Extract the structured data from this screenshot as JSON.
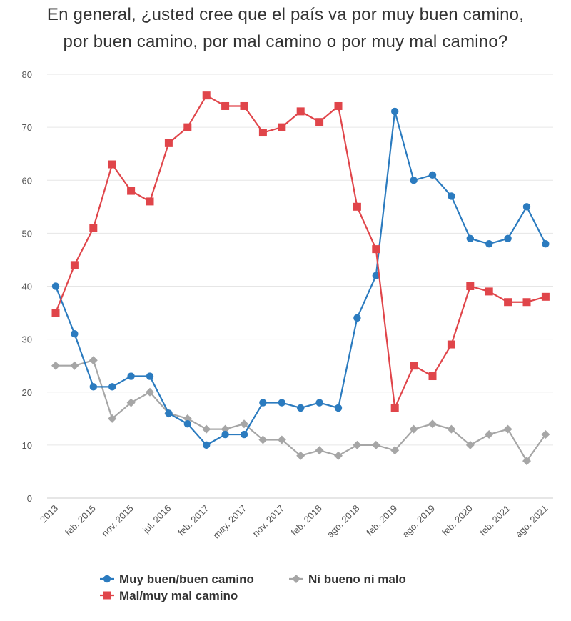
{
  "title_lines": [
    "En general, ¿usted cree que el país va por muy buen camino,",
    "por buen camino, por mal camino o por muy mal camino?"
  ],
  "colors": {
    "series_blue": "#2b7bbf",
    "series_red": "#e0454a",
    "series_gray": "#a6a6a6",
    "grid": "#e6e6e6"
  },
  "chart_data": {
    "type": "line",
    "title": "En general, ¿usted cree que el país va por muy buen camino, por buen camino, por mal camino o por muy mal camino?",
    "xlabel": "",
    "ylabel": "",
    "ylim": [
      0,
      80
    ],
    "yticks": [
      0,
      10,
      20,
      30,
      40,
      50,
      60,
      70,
      80
    ],
    "grid": true,
    "legend_position": "bottom",
    "x_tick_labels": [
      {
        "index": 0,
        "label": "2013"
      },
      {
        "index": 2,
        "label": "feb. 2015"
      },
      {
        "index": 4,
        "label": "nov. 2015"
      },
      {
        "index": 6,
        "label": "jul. 2016"
      },
      {
        "index": 8,
        "label": "feb. 2017"
      },
      {
        "index": 10,
        "label": "may. 2017"
      },
      {
        "index": 12,
        "label": "nov. 2017"
      },
      {
        "index": 14,
        "label": "feb. 2018"
      },
      {
        "index": 16,
        "label": "ago. 2018"
      },
      {
        "index": 18,
        "label": "feb. 2019"
      },
      {
        "index": 20,
        "label": "ago. 2019"
      },
      {
        "index": 22,
        "label": "feb. 2020"
      },
      {
        "index": 24,
        "label": "feb. 2021"
      },
      {
        "index": 26,
        "label": "ago. 2021"
      }
    ],
    "series": [
      {
        "name": "Muy buen/buen camino",
        "marker": "circle",
        "color": "#2b7bbf",
        "values": [
          40,
          31,
          21,
          21,
          23,
          23,
          16,
          14,
          10,
          12,
          12,
          18,
          18,
          17,
          18,
          17,
          34,
          42,
          73,
          60,
          61,
          57,
          49,
          48,
          49,
          55,
          48
        ]
      },
      {
        "name": "Mal/muy mal camino",
        "marker": "square",
        "color": "#e0454a",
        "values": [
          35,
          44,
          51,
          63,
          58,
          56,
          67,
          70,
          76,
          74,
          74,
          69,
          70,
          73,
          71,
          74,
          55,
          47,
          17,
          25,
          23,
          29,
          40,
          39,
          37,
          37,
          38
        ]
      },
      {
        "name": "Ni bueno ni malo",
        "marker": "diamond",
        "color": "#a6a6a6",
        "values": [
          25,
          25,
          26,
          15,
          18,
          20,
          16,
          15,
          13,
          13,
          14,
          11,
          11,
          8,
          9,
          8,
          10,
          10,
          9,
          13,
          14,
          13,
          10,
          12,
          13,
          7,
          12
        ]
      }
    ]
  }
}
